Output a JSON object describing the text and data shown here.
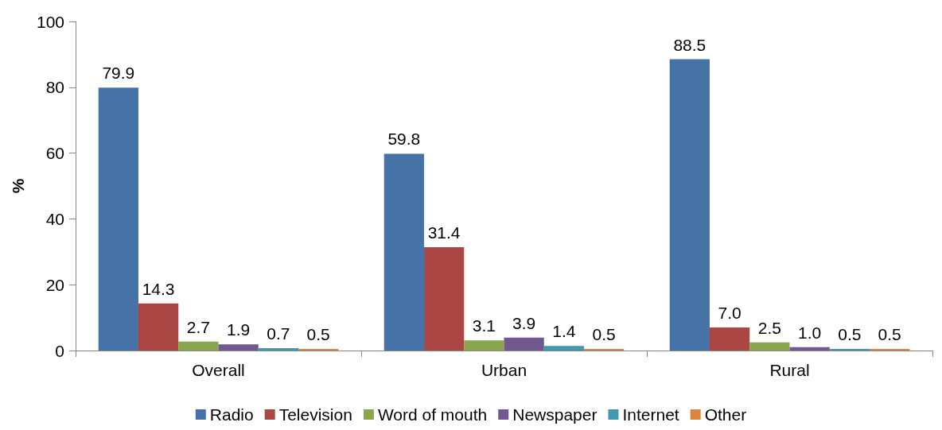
{
  "chart_data": {
    "type": "bar",
    "ylabel": "%",
    "categories": [
      "Overall",
      "Urban",
      "Rural"
    ],
    "series": [
      {
        "name": "Radio",
        "color": "#4572a7",
        "values": [
          79.9,
          59.8,
          88.5
        ],
        "value_labels": [
          "79.9",
          "59.8",
          "88.5"
        ]
      },
      {
        "name": "Television",
        "color": "#aa4643",
        "values": [
          14.3,
          31.4,
          7.0
        ],
        "value_labels": [
          "14.3",
          "31.4",
          "7.0"
        ]
      },
      {
        "name": "Word of mouth",
        "color": "#89a54e",
        "values": [
          2.7,
          3.1,
          2.5
        ],
        "value_labels": [
          "2.7",
          "3.1",
          "2.5"
        ]
      },
      {
        "name": "Newspaper",
        "color": "#71588f",
        "values": [
          1.9,
          3.9,
          1.0
        ],
        "value_labels": [
          "1.9",
          "3.9",
          "1.0"
        ]
      },
      {
        "name": "Internet",
        "color": "#4198af",
        "values": [
          0.7,
          1.4,
          0.5
        ],
        "value_labels": [
          "0.7",
          "1.4",
          "0.5"
        ]
      },
      {
        "name": "Other",
        "color": "#db843d",
        "values": [
          0.5,
          0.5,
          0.5
        ],
        "value_labels": [
          "0.5",
          "0.5",
          "0.5"
        ]
      }
    ],
    "ylim": [
      0,
      100
    ],
    "yticks": [
      0,
      20,
      40,
      60,
      80,
      100
    ],
    "grid": false,
    "legend": "bottom"
  }
}
